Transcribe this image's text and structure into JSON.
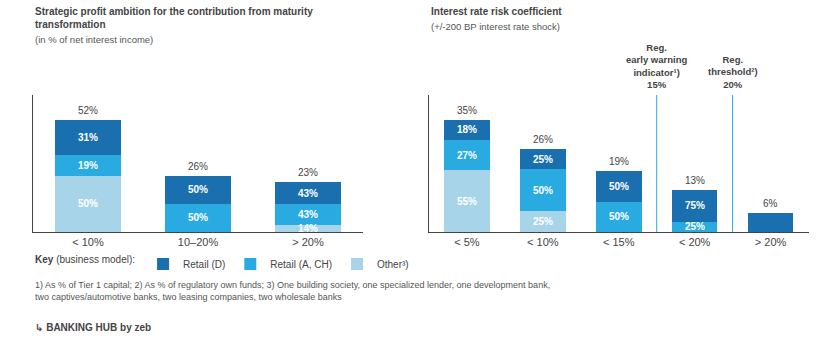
{
  "chart_data": [
    {
      "type": "bar",
      "stacked": true,
      "title": "Strategic profit ambition for the contribution from maturity transformation",
      "subtitle": "(in % of net interest income)",
      "categories": [
        "< 10%",
        "10–20%",
        "> 20%"
      ],
      "series": [
        {
          "name": "Other³)",
          "color": "#a8d4ea",
          "values": [
            26,
            0,
            3.22
          ]
        },
        {
          "name": "Retail (A, CH)",
          "color": "#29abe2",
          "values": [
            9.88,
            13,
            9.89
          ]
        },
        {
          "name": "Retail (D)",
          "color": "#1a6faf",
          "values": [
            16.12,
            13,
            9.89
          ]
        }
      ],
      "ylim": [
        0,
        63.44
      ],
      "yticks": [],
      "tick_labels": "x",
      "grid": false,
      "legend": "bottom",
      "annotations": [
        {
          "category": "< 10%",
          "series": "Other³)",
          "text": "50%"
        },
        {
          "category": "< 10%",
          "series": "Retail (A, CH)",
          "text": "19%"
        },
        {
          "category": "< 10%",
          "series": "Retail (D)",
          "text": "31%"
        },
        {
          "category": "< 10%",
          "text": "52%"
        },
        {
          "category": "10–20%",
          "series": "Retail (A, CH)",
          "text": "50%"
        },
        {
          "category": "10–20%",
          "series": "Retail (D)",
          "text": "50%"
        },
        {
          "category": "10–20%",
          "text": "26%"
        },
        {
          "category": "> 20%",
          "series": "Other³)",
          "text": "14%"
        },
        {
          "category": "> 20%",
          "series": "Retail (A, CH)",
          "text": "43%"
        },
        {
          "category": "> 20%",
          "series": "Retail (D)",
          "text": "43%"
        },
        {
          "category": "> 20%",
          "text": "23%"
        }
      ]
    },
    {
      "type": "bar",
      "stacked": true,
      "title": "Interest rate risk coefficient",
      "subtitle": "(+/-200 BP interest rate shock)",
      "categories": [
        "< 5%",
        "< 10%",
        "< 15%",
        "< 20%",
        "> 20%"
      ],
      "series": [
        {
          "name": "Other³)",
          "color": "#a8d4ea",
          "values": [
            19.25,
            6.5,
            0,
            0,
            0
          ]
        },
        {
          "name": "Retail (A, CH)",
          "color": "#29abe2",
          "values": [
            9.45,
            13,
            9.5,
            3.25,
            0
          ]
        },
        {
          "name": "Retail (D)",
          "color": "#1a6faf",
          "values": [
            6.3,
            6.5,
            9.5,
            9.75,
            6
          ]
        }
      ],
      "ylim": [
        0,
        42.7
      ],
      "yticks": [],
      "tick_labels": "x",
      "grid": false,
      "annotations": [
        {
          "category": "< 5%",
          "series": "Other³)",
          "text": "55%"
        },
        {
          "category": "< 5%",
          "series": "Retail (A, CH)",
          "text": "27%"
        },
        {
          "category": "< 5%",
          "series": "Retail (D)",
          "text": "18%"
        },
        {
          "category": "< 5%",
          "text": "35%"
        },
        {
          "category": "< 10%",
          "series": "Other³)",
          "text": "25%"
        },
        {
          "category": "< 10%",
          "series": "Retail (A, CH)",
          "text": "50%"
        },
        {
          "category": "< 10%",
          "series": "Retail (D)",
          "text": "25%"
        },
        {
          "category": "< 10%",
          "text": "26%"
        },
        {
          "category": "< 15%",
          "series": "Retail (A, CH)",
          "text": "50%"
        },
        {
          "category": "< 15%",
          "series": "Retail (D)",
          "text": "50%"
        },
        {
          "category": "< 15%",
          "text": "19%"
        },
        {
          "category": "< 20%",
          "series": "Retail (A, CH)",
          "text": "25%"
        },
        {
          "category": "< 20%",
          "series": "Retail (D)",
          "text": "75%"
        },
        {
          "category": "< 20%",
          "text": "13%"
        },
        {
          "category": "> 20%",
          "text": "6%"
        }
      ],
      "reference_lines": [
        {
          "x": 2.5,
          "label": "Reg.\nearly warning\nindicator¹)\n15%",
          "color": "#29abe2"
        },
        {
          "x": 3.5,
          "label": "Reg.\nthreshold²)\n20%",
          "color": "#29abe2"
        }
      ]
    }
  ],
  "legend_title": "Key (business model):",
  "footnote": "1) As % of Tier 1 capital; 2) As % of regulatory own funds; 3) One building society, one specialized lender, one development bank, two captives/automotive banks, two leasing companies, two wholesale banks",
  "footer": "↳ BANKING HUB by zeb"
}
